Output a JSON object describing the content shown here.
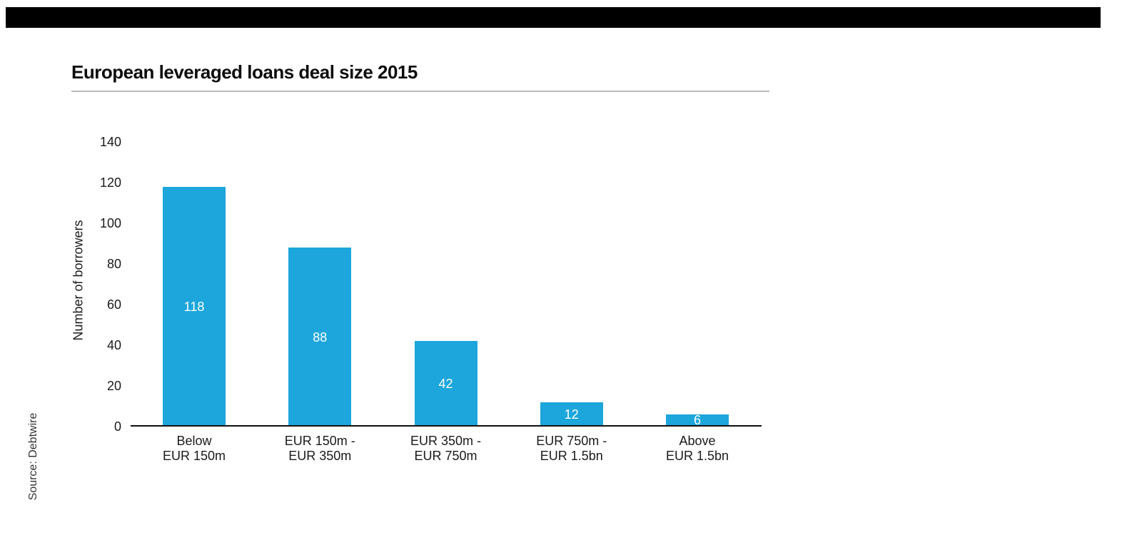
{
  "page": {
    "source_note": "Source: Debtwire"
  },
  "chart_data": {
    "type": "bar",
    "title": "European leveraged loans deal size 2015",
    "categories": [
      [
        "Below",
        "EUR 150m"
      ],
      [
        "EUR 150m -",
        "EUR 350m"
      ],
      [
        "EUR 350m -",
        "EUR 750m"
      ],
      [
        "EUR 750m -",
        "EUR 1.5bn"
      ],
      [
        "Above",
        "EUR 1.5bn"
      ]
    ],
    "values": [
      118,
      88,
      42,
      12,
      6
    ],
    "xlabel": "",
    "ylabel": "Number of borrowers",
    "ylim": [
      0,
      140
    ],
    "yticks": [
      0,
      20,
      40,
      60,
      80,
      100,
      120,
      140
    ],
    "grid": false,
    "legend_position": "none",
    "bar_color": "#1CA6DB",
    "value_label_color": "#FFFFFF",
    "source": "Source: Debtwire"
  }
}
